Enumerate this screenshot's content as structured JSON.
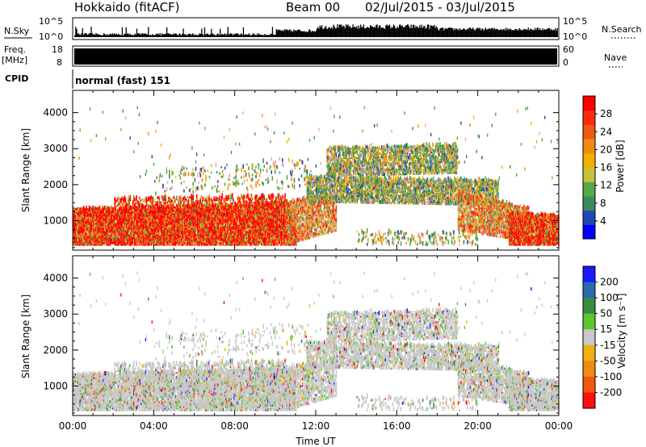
{
  "header": {
    "station": "Hokkaido (fitACF)",
    "beam": "Beam 00",
    "dates": "02/Jul/2015 - 03/Jul/2015"
  },
  "strips": {
    "nsky_label": "N.Sky",
    "nsky_ticks": [
      "10^5",
      "10^0"
    ],
    "nsearch_label": "N.Search",
    "nsearch_ticks": [
      "10^5",
      "10^0"
    ],
    "freq_label": "Freq.",
    "freq_unit": "[MHz]",
    "freq_ticks": [
      18,
      8
    ],
    "nave_label": "Nave",
    "nave_ticks": [
      60,
      0
    ],
    "cpid_label": "CPID",
    "cpid_value": "normal (fast) 151"
  },
  "chart_data": [
    {
      "type": "heatmap",
      "ylabel": "Slant Range [km]",
      "xlabel": "",
      "x_ticks": [
        "00:00",
        "04:00",
        "08:00",
        "12:00",
        "16:00",
        "20:00",
        "00:00"
      ],
      "x_range_hours": [
        0,
        24
      ],
      "y_ticks": [
        1000,
        2000,
        3000,
        4000
      ],
      "ylim": [
        180,
        4620
      ],
      "colorbar": {
        "label": "Power [dB]",
        "ticks": [
          4,
          8,
          12,
          16,
          20,
          24,
          28
        ],
        "range": [
          0,
          32
        ],
        "colors": [
          "#0000ff",
          "#2147b5",
          "#3b8a5c",
          "#56a84a",
          "#c9c040",
          "#f0b000",
          "#f08a10",
          "#f05a10",
          "#ff2a10",
          "#ff0000"
        ]
      }
    },
    {
      "type": "heatmap",
      "ylabel": "Slant Range [km]",
      "xlabel": "Time UT",
      "x_ticks": [
        "00:00",
        "04:00",
        "08:00",
        "12:00",
        "16:00",
        "20:00",
        "00:00"
      ],
      "x_range_hours": [
        0,
        24
      ],
      "y_ticks": [
        1000,
        2000,
        3000,
        4000
      ],
      "ylim": [
        180,
        4620
      ],
      "colorbar": {
        "label": "Velocity [m s⁻¹]",
        "ticks": [
          200,
          100,
          50,
          15,
          -15,
          -50,
          -100,
          -200
        ],
        "colors": [
          "#1a1aff",
          "#2a6ab0",
          "#3a8a40",
          "#5cc830",
          "#c8c8c8",
          "#f0b010",
          "#f08a10",
          "#f05a10",
          "#ff1010"
        ]
      }
    }
  ]
}
